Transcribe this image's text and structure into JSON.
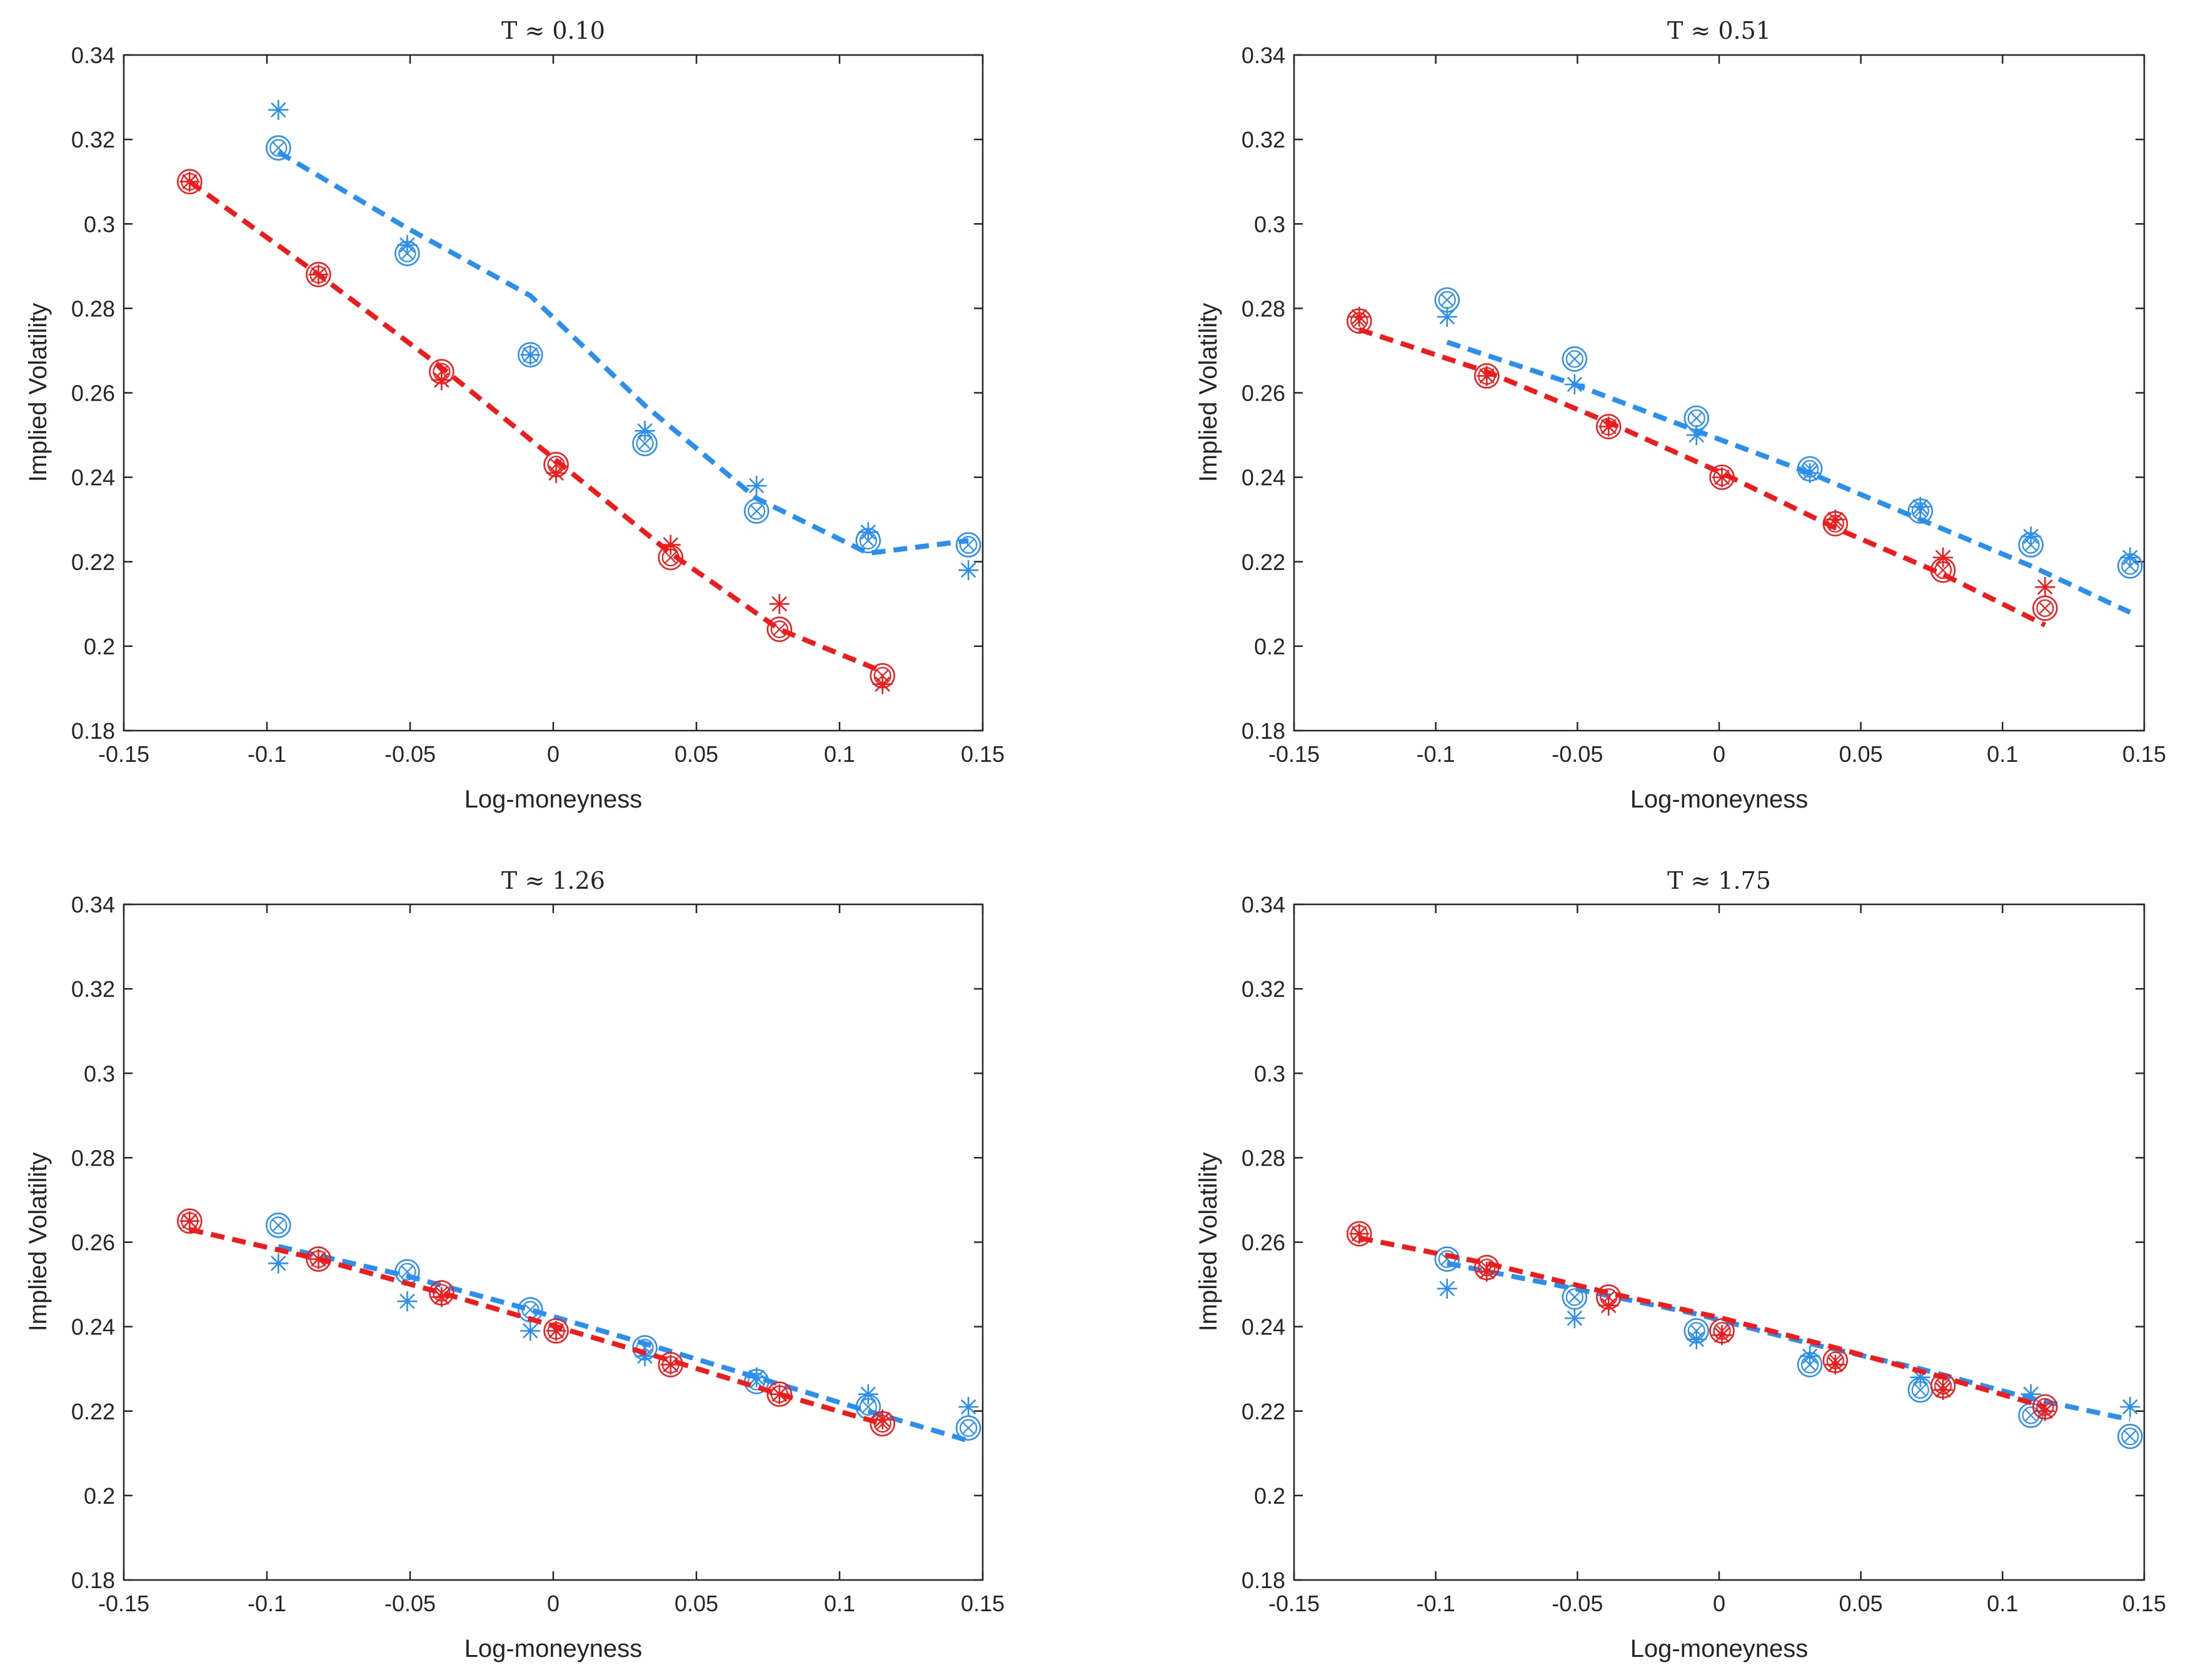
{
  "colors": {
    "red": "#ee1c1c",
    "blue": "#2b8ff0",
    "axis": "#262626",
    "background": "#ffffff"
  },
  "chart_data": [
    {
      "type": "scatter",
      "title": "T ≈ 0.10",
      "xlabel": "Log-moneyness",
      "ylabel": "Implied Volatility",
      "xlim": [
        -0.15,
        0.15
      ],
      "ylim": [
        0.18,
        0.34
      ],
      "xticks": [
        "-0.15",
        "-0.1",
        "-0.05",
        "0",
        "0.05",
        "0.1",
        "0.15"
      ],
      "yticks": [
        "0.18",
        "0.2",
        "0.22",
        "0.24",
        "0.26",
        "0.28",
        "0.3",
        "0.32",
        "0.34"
      ],
      "red": {
        "line": [
          [
            -0.127,
            0.31
          ],
          [
            -0.082,
            0.288
          ],
          [
            -0.039,
            0.266
          ],
          [
            0.001,
            0.244
          ],
          [
            0.041,
            0.222
          ],
          [
            0.079,
            0.204
          ],
          [
            0.115,
            0.194
          ]
        ],
        "circles": [
          [
            -0.127,
            0.31
          ],
          [
            -0.082,
            0.288
          ],
          [
            -0.039,
            0.265
          ],
          [
            0.001,
            0.243
          ],
          [
            0.041,
            0.221
          ],
          [
            0.079,
            0.204
          ],
          [
            0.115,
            0.193
          ]
        ],
        "stars": [
          [
            -0.127,
            0.31
          ],
          [
            -0.082,
            0.288
          ],
          [
            -0.039,
            0.263
          ],
          [
            0.001,
            0.241
          ],
          [
            0.041,
            0.224
          ],
          [
            0.079,
            0.21
          ],
          [
            0.115,
            0.191
          ]
        ]
      },
      "blue": {
        "line": [
          [
            -0.096,
            0.317
          ],
          [
            -0.051,
            0.299
          ],
          [
            -0.008,
            0.283
          ],
          [
            0.032,
            0.257
          ],
          [
            0.071,
            0.235
          ],
          [
            0.11,
            0.222
          ],
          [
            0.145,
            0.225
          ]
        ],
        "circles": [
          [
            -0.096,
            0.318
          ],
          [
            -0.051,
            0.293
          ],
          [
            -0.008,
            0.269
          ],
          [
            0.032,
            0.248
          ],
          [
            0.071,
            0.232
          ],
          [
            0.11,
            0.225
          ],
          [
            0.145,
            0.224
          ]
        ],
        "stars": [
          [
            -0.096,
            0.327
          ],
          [
            -0.051,
            0.295
          ],
          [
            -0.008,
            0.269
          ],
          [
            0.032,
            0.251
          ],
          [
            0.071,
            0.238
          ],
          [
            0.11,
            0.227
          ],
          [
            0.145,
            0.218
          ]
        ]
      }
    },
    {
      "type": "scatter",
      "title": "T ≈ 0.51",
      "xlabel": "Log-moneyness",
      "ylabel": "Implied Volatility",
      "xlim": [
        -0.15,
        0.15
      ],
      "ylim": [
        0.18,
        0.34
      ],
      "xticks": [
        "-0.15",
        "-0.1",
        "-0.05",
        "0",
        "0.05",
        "0.1",
        "0.15"
      ],
      "yticks": [
        "0.18",
        "0.2",
        "0.22",
        "0.24",
        "0.26",
        "0.28",
        "0.3",
        "0.32",
        "0.34"
      ],
      "red": {
        "line": [
          [
            -0.127,
            0.275
          ],
          [
            -0.082,
            0.265
          ],
          [
            -0.039,
            0.253
          ],
          [
            0.001,
            0.241
          ],
          [
            0.041,
            0.228
          ],
          [
            0.079,
            0.217
          ],
          [
            0.115,
            0.205
          ]
        ],
        "circles": [
          [
            -0.127,
            0.277
          ],
          [
            -0.082,
            0.264
          ],
          [
            -0.039,
            0.252
          ],
          [
            0.001,
            0.24
          ],
          [
            0.041,
            0.229
          ],
          [
            0.079,
            0.218
          ],
          [
            0.115,
            0.209
          ]
        ],
        "stars": [
          [
            -0.127,
            0.278
          ],
          [
            -0.082,
            0.264
          ],
          [
            -0.039,
            0.252
          ],
          [
            0.001,
            0.24
          ],
          [
            0.041,
            0.23
          ],
          [
            0.079,
            0.221
          ],
          [
            0.115,
            0.214
          ]
        ]
      },
      "blue": {
        "line": [
          [
            -0.096,
            0.272
          ],
          [
            -0.051,
            0.262
          ],
          [
            -0.008,
            0.251
          ],
          [
            0.032,
            0.241
          ],
          [
            0.071,
            0.23
          ],
          [
            0.11,
            0.219
          ],
          [
            0.145,
            0.208
          ]
        ],
        "circles": [
          [
            -0.096,
            0.282
          ],
          [
            -0.051,
            0.268
          ],
          [
            -0.008,
            0.254
          ],
          [
            0.032,
            0.242
          ],
          [
            0.071,
            0.232
          ],
          [
            0.11,
            0.224
          ],
          [
            0.145,
            0.219
          ]
        ],
        "stars": [
          [
            -0.096,
            0.278
          ],
          [
            -0.051,
            0.262
          ],
          [
            -0.008,
            0.25
          ],
          [
            0.032,
            0.241
          ],
          [
            0.071,
            0.233
          ],
          [
            0.11,
            0.226
          ],
          [
            0.145,
            0.221
          ]
        ]
      }
    },
    {
      "type": "scatter",
      "title": "T ≈ 1.26",
      "xlabel": "Log-moneyness",
      "ylabel": "Implied Volatility",
      "xlim": [
        -0.15,
        0.15
      ],
      "ylim": [
        0.18,
        0.34
      ],
      "xticks": [
        "-0.15",
        "-0.1",
        "-0.05",
        "0",
        "0.05",
        "0.1",
        "0.15"
      ],
      "yticks": [
        "0.18",
        "0.2",
        "0.22",
        "0.24",
        "0.26",
        "0.28",
        "0.3",
        "0.32",
        "0.34"
      ],
      "red": {
        "line": [
          [
            -0.127,
            0.263
          ],
          [
            -0.082,
            0.256
          ],
          [
            -0.039,
            0.248
          ],
          [
            0.001,
            0.24
          ],
          [
            0.041,
            0.232
          ],
          [
            0.079,
            0.224
          ],
          [
            0.115,
            0.217
          ]
        ],
        "circles": [
          [
            -0.127,
            0.265
          ],
          [
            -0.082,
            0.256
          ],
          [
            -0.039,
            0.248
          ],
          [
            0.001,
            0.239
          ],
          [
            0.041,
            0.231
          ],
          [
            0.079,
            0.224
          ],
          [
            0.115,
            0.217
          ]
        ],
        "stars": [
          [
            -0.127,
            0.265
          ],
          [
            -0.082,
            0.256
          ],
          [
            -0.039,
            0.247
          ],
          [
            0.001,
            0.239
          ],
          [
            0.041,
            0.231
          ],
          [
            0.079,
            0.224
          ],
          [
            0.115,
            0.218
          ]
        ]
      },
      "blue": {
        "line": [
          [
            -0.096,
            0.259
          ],
          [
            -0.051,
            0.252
          ],
          [
            -0.008,
            0.244
          ],
          [
            0.032,
            0.236
          ],
          [
            0.071,
            0.228
          ],
          [
            0.11,
            0.22
          ],
          [
            0.145,
            0.213
          ]
        ],
        "circles": [
          [
            -0.096,
            0.264
          ],
          [
            -0.051,
            0.253
          ],
          [
            -0.008,
            0.244
          ],
          [
            0.032,
            0.235
          ],
          [
            0.071,
            0.227
          ],
          [
            0.11,
            0.221
          ],
          [
            0.145,
            0.216
          ]
        ],
        "stars": [
          [
            -0.096,
            0.255
          ],
          [
            -0.051,
            0.246
          ],
          [
            -0.008,
            0.239
          ],
          [
            0.032,
            0.233
          ],
          [
            0.071,
            0.228
          ],
          [
            0.11,
            0.224
          ],
          [
            0.145,
            0.221
          ]
        ]
      }
    },
    {
      "type": "scatter",
      "title": "T ≈ 1.75",
      "xlabel": "Log-moneyness",
      "ylabel": "Implied Volatility",
      "xlim": [
        -0.15,
        0.15
      ],
      "ylim": [
        0.18,
        0.34
      ],
      "xticks": [
        "-0.15",
        "-0.1",
        "-0.05",
        "0",
        "0.05",
        "0.1",
        "0.15"
      ],
      "yticks": [
        "0.18",
        "0.2",
        "0.22",
        "0.24",
        "0.26",
        "0.28",
        "0.3",
        "0.32",
        "0.34"
      ],
      "red": {
        "line": [
          [
            -0.127,
            0.261
          ],
          [
            -0.082,
            0.255
          ],
          [
            -0.039,
            0.248
          ],
          [
            0.001,
            0.242
          ],
          [
            0.041,
            0.235
          ],
          [
            0.079,
            0.228
          ],
          [
            0.115,
            0.221
          ]
        ],
        "circles": [
          [
            -0.127,
            0.262
          ],
          [
            -0.082,
            0.254
          ],
          [
            -0.039,
            0.247
          ],
          [
            0.001,
            0.239
          ],
          [
            0.041,
            0.232
          ],
          [
            0.079,
            0.226
          ],
          [
            0.115,
            0.221
          ]
        ],
        "stars": [
          [
            -0.127,
            0.262
          ],
          [
            -0.082,
            0.253
          ],
          [
            -0.039,
            0.245
          ],
          [
            0.001,
            0.238
          ],
          [
            0.041,
            0.231
          ],
          [
            0.079,
            0.225
          ],
          [
            0.115,
            0.22
          ]
        ]
      },
      "blue": {
        "line": [
          [
            -0.096,
            0.255
          ],
          [
            -0.051,
            0.249
          ],
          [
            -0.008,
            0.243
          ],
          [
            0.032,
            0.236
          ],
          [
            0.071,
            0.23
          ],
          [
            0.11,
            0.223
          ],
          [
            0.145,
            0.218
          ]
        ],
        "circles": [
          [
            -0.096,
            0.256
          ],
          [
            -0.051,
            0.247
          ],
          [
            -0.008,
            0.239
          ],
          [
            0.032,
            0.231
          ],
          [
            0.071,
            0.225
          ],
          [
            0.11,
            0.219
          ],
          [
            0.145,
            0.214
          ]
        ],
        "stars": [
          [
            -0.096,
            0.249
          ],
          [
            -0.051,
            0.242
          ],
          [
            -0.008,
            0.237
          ],
          [
            0.032,
            0.233
          ],
          [
            0.071,
            0.228
          ],
          [
            0.11,
            0.224
          ],
          [
            0.145,
            0.221
          ]
        ]
      }
    }
  ]
}
